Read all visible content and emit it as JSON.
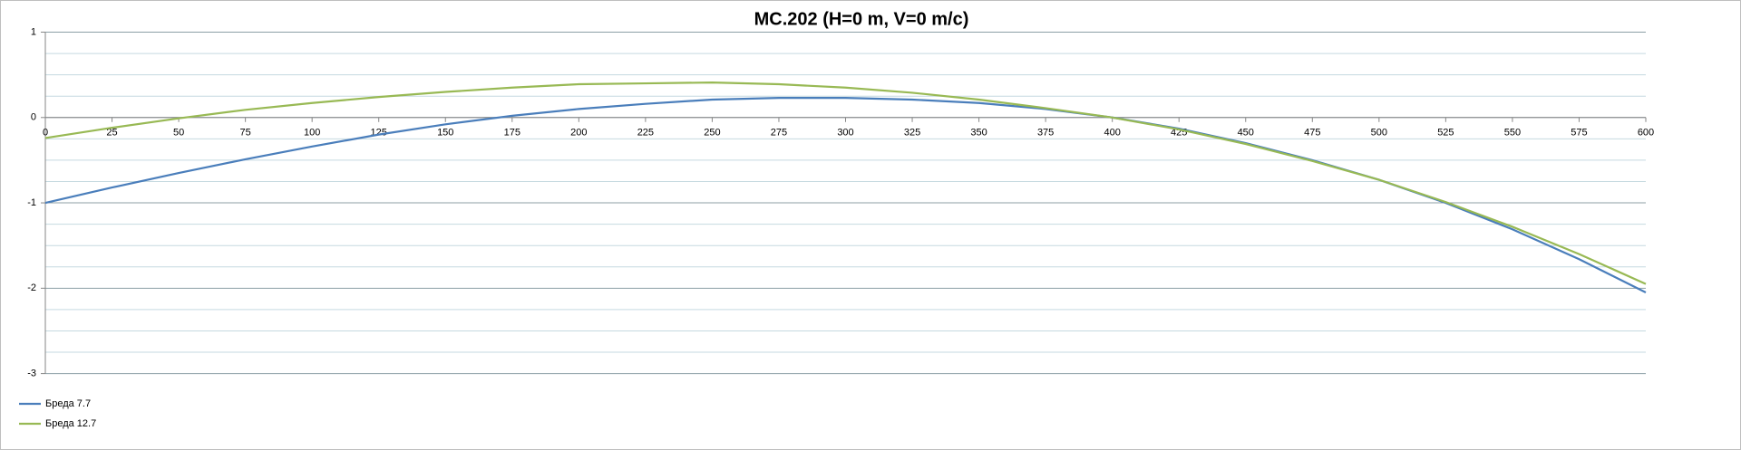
{
  "chart_data": {
    "type": "line",
    "title": "MC.202 (H=0 m, V=0 m/c)",
    "x": [
      0,
      25,
      50,
      75,
      100,
      125,
      150,
      175,
      200,
      225,
      250,
      275,
      300,
      325,
      350,
      375,
      400,
      425,
      450,
      475,
      500,
      525,
      550,
      575,
      600
    ],
    "series": [
      {
        "name": "Бреда 7.7",
        "color": "#4a7ebb",
        "values": [
          -1.0,
          -0.82,
          -0.65,
          -0.49,
          -0.34,
          -0.2,
          -0.08,
          0.02,
          0.1,
          0.16,
          0.21,
          0.23,
          0.23,
          0.21,
          0.17,
          0.1,
          0.0,
          -0.13,
          -0.3,
          -0.5,
          -0.73,
          -1.0,
          -1.31,
          -1.66,
          -2.05
        ]
      },
      {
        "name": "Бреда 12.7",
        "color": "#98b954",
        "values": [
          -0.24,
          -0.12,
          -0.01,
          0.09,
          0.17,
          0.24,
          0.3,
          0.35,
          0.39,
          0.4,
          0.41,
          0.39,
          0.35,
          0.29,
          0.21,
          0.11,
          0.0,
          -0.14,
          -0.31,
          -0.51,
          -0.73,
          -0.99,
          -1.28,
          -1.6,
          -1.95
        ]
      }
    ],
    "xlim": [
      0,
      600
    ],
    "xticks": [
      0,
      25,
      50,
      75,
      100,
      125,
      150,
      175,
      200,
      225,
      250,
      275,
      300,
      325,
      350,
      375,
      400,
      425,
      450,
      475,
      500,
      525,
      550,
      575,
      600
    ],
    "ylim": [
      -3,
      1
    ],
    "yticks": [
      1,
      0,
      -1,
      -2,
      -3
    ],
    "grid": true,
    "minor_grid": true,
    "legend": "bottom-left"
  }
}
